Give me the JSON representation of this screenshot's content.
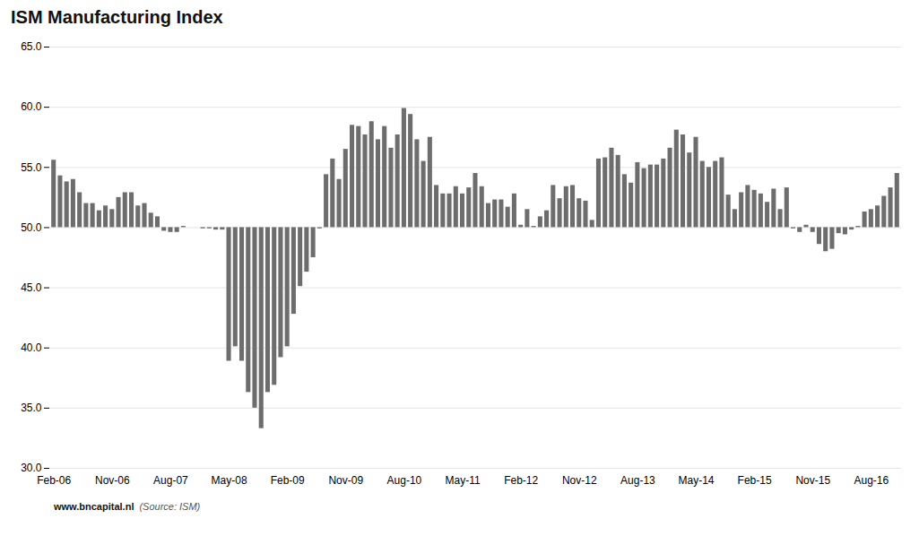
{
  "chart_data": {
    "type": "bar",
    "title": "ISM Manufacturing Index",
    "annotations": [
      "www.bncapital.nl",
      "(Source: ISM)"
    ],
    "color": "#6d6d6d",
    "baseline": 50.0,
    "categories": [
      "Feb-06",
      null,
      null,
      null,
      null,
      null,
      null,
      null,
      null,
      "Nov-06",
      null,
      null,
      null,
      null,
      null,
      null,
      null,
      null,
      "Aug-07",
      null,
      null,
      null,
      null,
      null,
      null,
      null,
      null,
      "May-08",
      null,
      null,
      null,
      null,
      null,
      null,
      null,
      null,
      "Feb-09",
      null,
      null,
      null,
      null,
      null,
      null,
      null,
      null,
      "Nov-09",
      null,
      null,
      null,
      null,
      null,
      null,
      null,
      null,
      "Aug-10",
      null,
      null,
      null,
      null,
      null,
      null,
      null,
      null,
      "May-11",
      null,
      null,
      null,
      null,
      null,
      null,
      null,
      null,
      "Feb-12",
      null,
      null,
      null,
      null,
      null,
      null,
      null,
      null,
      "Nov-12",
      null,
      null,
      null,
      null,
      null,
      null,
      null,
      null,
      "Aug-13",
      null,
      null,
      null,
      null,
      null,
      null,
      null,
      null,
      "May-14",
      null,
      null,
      null,
      null,
      null,
      null,
      null,
      null,
      "Feb-15",
      null,
      null,
      null,
      null,
      null,
      null,
      null,
      null,
      "Nov-15",
      null,
      null,
      null,
      null,
      null,
      null,
      null,
      null,
      "Aug-16",
      null,
      null,
      null,
      null
    ],
    "values": [
      55.6,
      54.3,
      53.8,
      54.0,
      52.9,
      52.0,
      52.0,
      51.4,
      51.8,
      51.5,
      52.5,
      52.9,
      52.9,
      51.8,
      52.0,
      51.2,
      50.9,
      49.7,
      49.6,
      49.6,
      50.1,
      50.0,
      50.0,
      49.9,
      49.9,
      49.8,
      49.8,
      38.9,
      40.1,
      38.9,
      36.3,
      35.0,
      33.3,
      36.3,
      36.9,
      39.2,
      40.1,
      42.8,
      45.1,
      46.3,
      47.5,
      49.9,
      54.4,
      55.7,
      54.0,
      56.5,
      58.5,
      58.4,
      57.7,
      58.8,
      57.3,
      58.4,
      56.6,
      57.7,
      59.9,
      59.4,
      57.3,
      55.5,
      57.5,
      53.5,
      52.8,
      52.8,
      53.4,
      52.8,
      53.3,
      54.5,
      53.4,
      52.0,
      52.3,
      52.3,
      51.7,
      52.8,
      50.2,
      51.5,
      50.1,
      50.9,
      51.4,
      53.5,
      52.4,
      53.4,
      53.5,
      52.4,
      52.2,
      50.6,
      55.7,
      55.8,
      56.6,
      56.0,
      54.4,
      53.7,
      55.4,
      54.9,
      55.2,
      55.2,
      55.7,
      56.6,
      58.1,
      57.7,
      56.2,
      57.5,
      55.5,
      55.0,
      55.5,
      55.8,
      52.7,
      51.5,
      52.9,
      53.5,
      53.1,
      52.8,
      52.1,
      53.2,
      51.5,
      53.3,
      49.9,
      49.6,
      50.2,
      49.6,
      48.6,
      48.0,
      48.2,
      49.5,
      49.4,
      49.8,
      50.1,
      51.3,
      51.5,
      51.8,
      52.6,
      53.3,
      54.5
    ],
    "ylim": [
      30.0,
      65.0
    ],
    "yticks": [
      {
        "value": 30.0,
        "label": "30.0"
      },
      {
        "value": 35.0,
        "label": "35.0"
      },
      {
        "value": 40.0,
        "label": "40.0"
      },
      {
        "value": 45.0,
        "label": "45.0"
      },
      {
        "value": 50.0,
        "label": "50.0"
      },
      {
        "value": 55.0,
        "label": "55.0"
      },
      {
        "value": 60.0,
        "label": "60.0"
      },
      {
        "value": 65.0,
        "label": "65.0"
      }
    ],
    "grid": true
  }
}
